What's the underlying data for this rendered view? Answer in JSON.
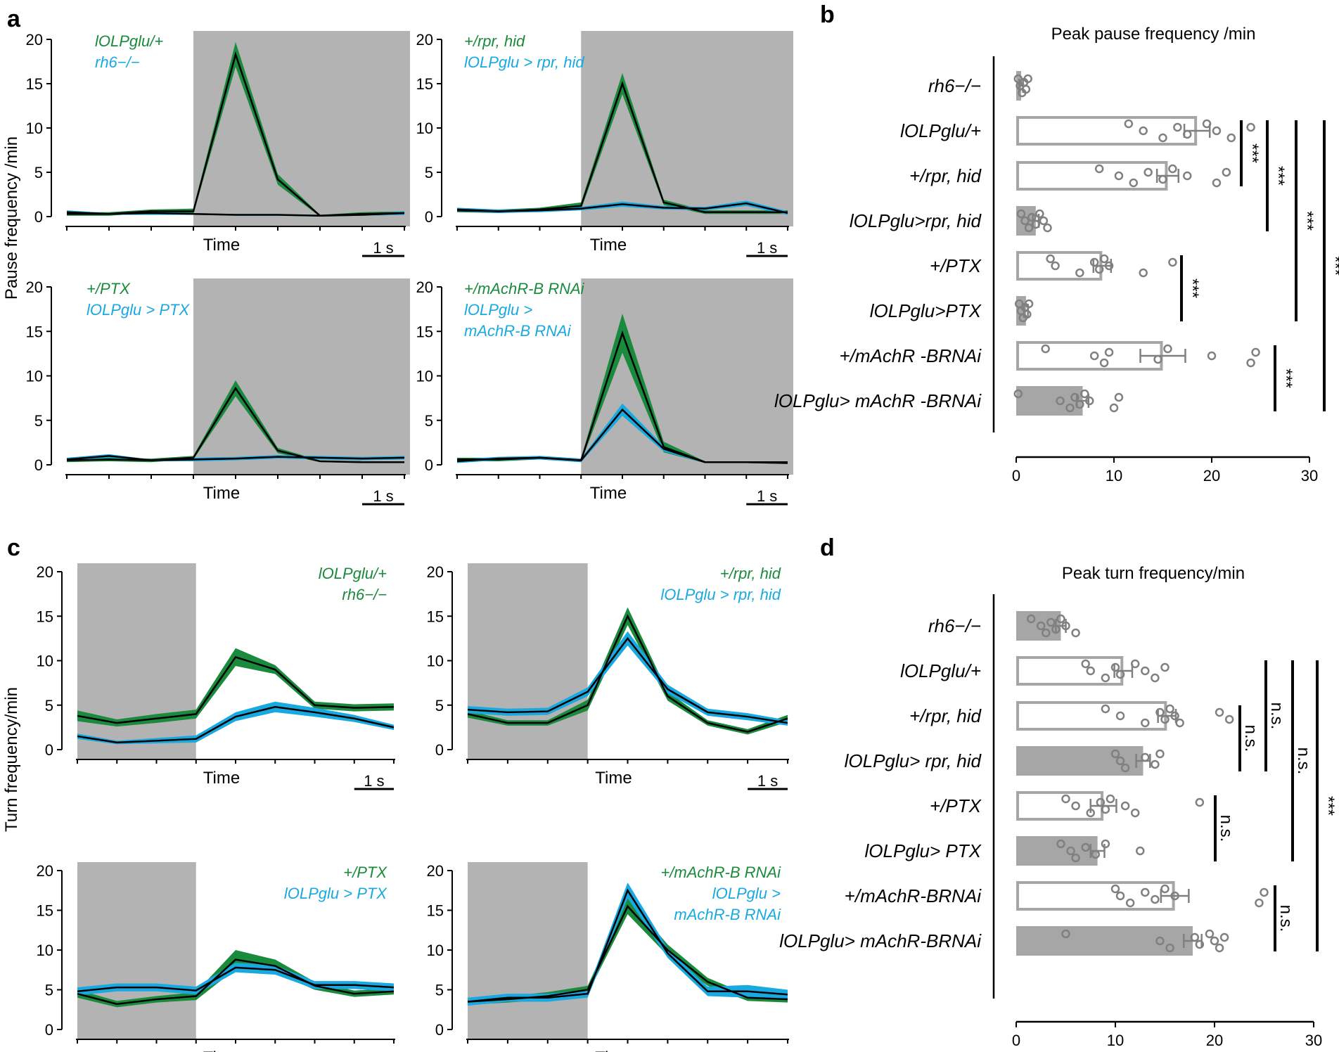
{
  "colors": {
    "control": "#1a8a3c",
    "experimental": "#19a9e1",
    "mean": "#000000",
    "shade": "#b3b3b3",
    "bar_filled": "#a6a6a6",
    "bar_outline": "#a6a6a6",
    "dot": "#808080"
  },
  "panels": {
    "a": {
      "label": "a",
      "ylabel": "Pause frequency /min",
      "xlabel": "Time",
      "scalebar": "1 s"
    },
    "b": {
      "label": "b",
      "title": "Peak pause frequency /min"
    },
    "c": {
      "label": "c",
      "ylabel": "Turn frequency/min",
      "xlabel": "Time",
      "scalebar": "1 s"
    },
    "d": {
      "label": "d",
      "title": "Peak turn frequency/min"
    }
  },
  "chart_data": [
    {
      "id": "a1",
      "type": "line",
      "panel": "a",
      "xlabel": "Time",
      "ylabel": "Pause frequency /min",
      "ylim": [
        0,
        20
      ],
      "yticks": [
        0,
        5,
        10,
        15,
        20
      ],
      "light_off_bins": [
        3,
        9
      ],
      "legend": [
        "lOLPglu/+",
        "rh6−/−"
      ],
      "series": [
        {
          "name": "lOLPglu/+",
          "color": "control",
          "values": [
            0.3,
            0.3,
            0.6,
            0.6,
            18.3,
            4.2,
            0.1,
            0.3,
            0.4
          ],
          "err": [
            0.2,
            0.2,
            0.2,
            0.3,
            1.4,
            0.6,
            0.1,
            0.2,
            0.2
          ]
        },
        {
          "name": "rh6−/−",
          "color": "experimental",
          "values": [
            0.5,
            0.3,
            0.4,
            0.3,
            0.2,
            0.2,
            0.1,
            0.2,
            0.4
          ],
          "err": [
            0.2,
            0.1,
            0.2,
            0.1,
            0.1,
            0.1,
            0.1,
            0.1,
            0.2
          ]
        }
      ]
    },
    {
      "id": "a2",
      "type": "line",
      "panel": "a",
      "xlabel": "Time",
      "ylabel": "",
      "ylim": [
        0,
        20
      ],
      "yticks": [
        0,
        5,
        10,
        15,
        20
      ],
      "light_off_bins": [
        3,
        9
      ],
      "legend": [
        "+/rpr, hid",
        "lOLPglu > rpr, hid"
      ],
      "series": [
        {
          "name": "+/rpr, hid",
          "color": "control",
          "values": [
            0.7,
            0.6,
            0.8,
            1.2,
            15.0,
            1.6,
            0.5,
            0.5,
            0.5
          ],
          "err": [
            0.2,
            0.2,
            0.2,
            0.4,
            1.2,
            0.3,
            0.2,
            0.2,
            0.2
          ]
        },
        {
          "name": "lOLPglu > rpr, hid",
          "color": "experimental",
          "values": [
            0.8,
            0.6,
            0.7,
            0.9,
            1.4,
            1.0,
            0.9,
            1.5,
            0.4
          ],
          "err": [
            0.2,
            0.2,
            0.2,
            0.2,
            0.3,
            0.2,
            0.2,
            0.3,
            0.2
          ]
        }
      ]
    },
    {
      "id": "a3",
      "type": "line",
      "panel": "a",
      "xlabel": "Time",
      "ylabel": "",
      "ylim": [
        0,
        20
      ],
      "yticks": [
        0,
        5,
        10,
        15,
        20
      ],
      "light_off_bins": [
        3,
        9
      ],
      "legend": [
        "+/PTX",
        "lOLPglu > PTX"
      ],
      "series": [
        {
          "name": "+/PTX",
          "color": "control",
          "values": [
            0.5,
            0.6,
            0.5,
            0.8,
            8.6,
            1.6,
            0.4,
            0.3,
            0.3
          ],
          "err": [
            0.2,
            0.2,
            0.2,
            0.2,
            0.9,
            0.3,
            0.1,
            0.1,
            0.1
          ]
        },
        {
          "name": "lOLPglu > PTX",
          "color": "experimental",
          "values": [
            0.6,
            1.0,
            0.5,
            0.6,
            0.7,
            0.9,
            0.8,
            0.7,
            0.8
          ],
          "err": [
            0.2,
            0.2,
            0.1,
            0.2,
            0.2,
            0.2,
            0.2,
            0.2,
            0.2
          ]
        }
      ]
    },
    {
      "id": "a4",
      "type": "line",
      "panel": "a",
      "xlabel": "Time",
      "ylabel": "",
      "ylim": [
        0,
        20
      ],
      "yticks": [
        0,
        5,
        10,
        15,
        20
      ],
      "light_off_bins": [
        3,
        9
      ],
      "legend": [
        "+/mAchR-B RNAi",
        "lOLPglu > mAchR-B RNAi"
      ],
      "series": [
        {
          "name": "+/mAchR-B RNAi",
          "color": "control",
          "values": [
            0.6,
            0.6,
            0.8,
            0.5,
            14.8,
            2.0,
            0.3,
            0.3,
            0.2
          ],
          "err": [
            0.2,
            0.2,
            0.2,
            0.2,
            2.2,
            0.6,
            0.1,
            0.1,
            0.1
          ]
        },
        {
          "name": "lOLPglu > mAchR-B RNAi",
          "color": "experimental",
          "values": [
            0.4,
            0.7,
            0.8,
            0.5,
            6.2,
            1.8,
            0.3,
            0.3,
            0.3
          ],
          "err": [
            0.2,
            0.2,
            0.2,
            0.2,
            0.7,
            0.3,
            0.1,
            0.1,
            0.1
          ]
        }
      ]
    },
    {
      "id": "b",
      "type": "bar",
      "panel": "b",
      "orientation": "horizontal",
      "title": "Peak pause frequency /min",
      "xlim": [
        0,
        30
      ],
      "xticks": [
        0,
        10,
        20,
        30
      ],
      "categories": [
        "rh6−/−",
        "lOLPglu/+",
        "+/rpr, hid",
        "lOLPglu>rpr, hid",
        "+/PTX",
        "lOLPglu>PTX",
        "+/mAchR -BRNAi",
        "lOLPglu> mAchR -BRNAi"
      ],
      "values": [
        0.5,
        18.5,
        15.5,
        2.0,
        8.8,
        1.0,
        15.0,
        6.8
      ],
      "errors": [
        0.2,
        1.3,
        1.1,
        0.3,
        0.9,
        0.2,
        2.3,
        0.6
      ],
      "filled": [
        true,
        false,
        false,
        true,
        false,
        true,
        false,
        true
      ],
      "points": [
        [
          0.2,
          0.4,
          0.6,
          0.8,
          1.0,
          1.2
        ],
        [
          11.5,
          13.0,
          15.0,
          16.5,
          17.5,
          19.5,
          20.5,
          22.0,
          24.0
        ],
        [
          8.5,
          10.5,
          12.0,
          13.5,
          15.0,
          16.0,
          17.5,
          20.5,
          21.5
        ],
        [
          0.5,
          0.9,
          1.3,
          1.6,
          2.0,
          2.4,
          2.8,
          3.2
        ],
        [
          3.5,
          4.0,
          6.5,
          8.0,
          8.5,
          9.0,
          9.5,
          13.0,
          16.0
        ],
        [
          0.3,
          0.5,
          0.7,
          0.9,
          1.1,
          1.3
        ],
        [
          3.0,
          8.0,
          9.0,
          9.5,
          14.5,
          15.5,
          20.0,
          24.0,
          24.5
        ],
        [
          0.2,
          4.5,
          5.5,
          6.0,
          6.5,
          7.0,
          7.5,
          10.0,
          10.5
        ]
      ],
      "significance": [
        {
          "from": 1,
          "to": 2,
          "label": "***"
        },
        {
          "from": 1,
          "to": 3,
          "label": "***"
        },
        {
          "from": 4,
          "to": 5,
          "label": "***"
        },
        {
          "from": 1,
          "to": 5,
          "label": "***"
        },
        {
          "from": 6,
          "to": 7,
          "label": "***"
        },
        {
          "from": 1,
          "to": 7,
          "label": "***"
        }
      ]
    },
    {
      "id": "c1",
      "type": "line",
      "panel": "c",
      "xlabel": "Time",
      "ylabel": "Turn frequency/min",
      "ylim": [
        0,
        20
      ],
      "yticks": [
        0,
        5,
        10,
        15,
        20
      ],
      "light_off_bins": [
        0,
        3
      ],
      "legend": [
        "lOLPglu/+",
        "rh6−/−"
      ],
      "series": [
        {
          "name": "lOLPglu/+",
          "color": "control",
          "values": [
            3.8,
            3.0,
            3.5,
            4.0,
            10.4,
            9.0,
            5.0,
            4.7,
            4.8
          ],
          "err": [
            0.6,
            0.4,
            0.5,
            0.5,
            1.0,
            0.5,
            0.4,
            0.4,
            0.4
          ]
        },
        {
          "name": "rh6−/−",
          "color": "experimental",
          "values": [
            1.5,
            0.8,
            1.0,
            1.2,
            3.7,
            4.8,
            4.2,
            3.5,
            2.5
          ],
          "err": [
            0.3,
            0.2,
            0.3,
            0.4,
            0.5,
            0.6,
            0.5,
            0.4,
            0.3
          ]
        }
      ]
    },
    {
      "id": "c2",
      "type": "line",
      "panel": "c",
      "xlabel": "Time",
      "ylabel": "",
      "ylim": [
        0,
        20
      ],
      "yticks": [
        0,
        5,
        10,
        15,
        20
      ],
      "light_off_bins": [
        0,
        3
      ],
      "legend": [
        "+/rpr, hid",
        "lOLPglu > rpr, hid"
      ],
      "series": [
        {
          "name": "+/rpr, hid",
          "color": "control",
          "values": [
            4.0,
            3.0,
            3.0,
            5.0,
            15.0,
            6.0,
            3.0,
            2.0,
            3.5
          ],
          "err": [
            0.4,
            0.3,
            0.3,
            0.6,
            1.0,
            0.5,
            0.3,
            0.3,
            0.4
          ]
        },
        {
          "name": "lOLPglu > rpr, hid",
          "color": "experimental",
          "values": [
            4.5,
            4.2,
            4.3,
            6.5,
            12.5,
            6.8,
            4.2,
            3.7,
            3.0
          ],
          "err": [
            0.4,
            0.4,
            0.4,
            0.5,
            0.8,
            0.5,
            0.4,
            0.4,
            0.3
          ]
        }
      ]
    },
    {
      "id": "c3",
      "type": "line",
      "panel": "c",
      "xlabel": "Time",
      "ylabel": "",
      "ylim": [
        0,
        20
      ],
      "yticks": [
        0,
        5,
        10,
        15,
        20
      ],
      "light_off_bins": [
        0,
        3
      ],
      "legend": [
        "+/PTX",
        "lOLPglu > PTX"
      ],
      "series": [
        {
          "name": "+/PTX",
          "color": "control",
          "values": [
            4.5,
            3.2,
            3.8,
            4.2,
            8.8,
            8.0,
            5.5,
            4.5,
            4.8
          ],
          "err": [
            0.5,
            0.4,
            0.4,
            0.5,
            1.2,
            0.8,
            0.5,
            0.4,
            0.4
          ]
        },
        {
          "name": "lOLPglu > PTX",
          "color": "experimental",
          "values": [
            4.8,
            5.3,
            5.3,
            4.9,
            7.8,
            7.5,
            5.6,
            5.6,
            5.3
          ],
          "err": [
            0.5,
            0.5,
            0.5,
            0.5,
            0.6,
            0.6,
            0.5,
            0.5,
            0.5
          ]
        }
      ]
    },
    {
      "id": "c4",
      "type": "line",
      "panel": "c",
      "xlabel": "Time",
      "ylabel": "",
      "ylim": [
        0,
        20
      ],
      "yticks": [
        0,
        5,
        10,
        15,
        20
      ],
      "light_off_bins": [
        0,
        3
      ],
      "legend": [
        "+/mAchR-B RNAi",
        "lOLPglu > mAchR-B RNAi"
      ],
      "series": [
        {
          "name": "+/mAchR-B RNAi",
          "color": "control",
          "values": [
            3.5,
            3.8,
            4.2,
            5.0,
            15.5,
            10.0,
            6.0,
            4.0,
            3.8
          ],
          "err": [
            0.4,
            0.4,
            0.5,
            0.5,
            1.0,
            0.7,
            0.5,
            0.4,
            0.4
          ]
        },
        {
          "name": "lOLPglu > mAchR-B RNAi",
          "color": "experimental",
          "values": [
            3.5,
            4.0,
            4.0,
            4.5,
            17.5,
            9.6,
            4.8,
            4.8,
            4.4
          ],
          "err": [
            0.5,
            0.5,
            0.5,
            0.5,
            1.0,
            0.6,
            0.6,
            0.8,
            0.6
          ]
        }
      ]
    },
    {
      "id": "d",
      "type": "bar",
      "panel": "d",
      "orientation": "horizontal",
      "title": "Peak turn frequency/min",
      "xlim": [
        0,
        30
      ],
      "xticks": [
        0,
        10,
        20,
        30
      ],
      "categories": [
        "rh6−/−",
        "lOLPglu/+",
        "+/rpr, hid",
        "lOLPglu> rpr, hid",
        "+/PTX",
        "lOLPglu> PTX",
        "+/mAchR-BRNAi",
        "lOLPglu> mAchR-BRNAi"
      ],
      "values": [
        4.5,
        10.8,
        15.2,
        12.8,
        8.8,
        8.2,
        16.0,
        17.8
      ],
      "errors": [
        0.5,
        0.9,
        0.9,
        0.7,
        1.3,
        0.7,
        1.4,
        0.9
      ],
      "filled": [
        true,
        false,
        false,
        true,
        false,
        true,
        false,
        true
      ],
      "points": [
        [
          1.5,
          2.5,
          3.0,
          3.5,
          4.0,
          4.5,
          5.0,
          6.0
        ],
        [
          7.0,
          7.5,
          9.0,
          10.0,
          10.5,
          12.0,
          13.0,
          14.0,
          15.0
        ],
        [
          9.0,
          10.5,
          13.0,
          14.5,
          15.0,
          15.5,
          16.0,
          16.5,
          20.5,
          21.5
        ],
        [
          10.0,
          10.5,
          11.0,
          13.0,
          14.0,
          14.5
        ],
        [
          5.0,
          6.0,
          7.5,
          8.5,
          9.0,
          9.5,
          11.0,
          12.0,
          18.5
        ],
        [
          4.5,
          5.5,
          6.0,
          7.0,
          8.0,
          9.0,
          12.5
        ],
        [
          10.0,
          10.5,
          11.5,
          13.0,
          14.0,
          15.0,
          16.0,
          24.5,
          25.0
        ],
        [
          5.0,
          14.5,
          15.5,
          18.0,
          18.5,
          19.5,
          20.0,
          20.5,
          21.0
        ]
      ],
      "significance": [
        {
          "from": 2,
          "to": 3,
          "label": "n.s."
        },
        {
          "from": 1,
          "to": 3,
          "label": "n.s."
        },
        {
          "from": 4,
          "to": 5,
          "label": "n.s."
        },
        {
          "from": 1,
          "to": 5,
          "label": "n.s."
        },
        {
          "from": 6,
          "to": 7,
          "label": "n.s."
        },
        {
          "from": 1,
          "to": 7,
          "label": "***"
        }
      ]
    }
  ]
}
